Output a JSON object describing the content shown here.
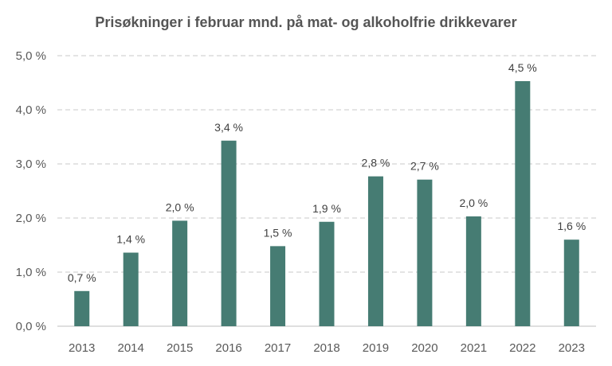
{
  "chart_data": {
    "type": "bar",
    "title": "Prisøkninger i februar mnd. på mat- og alkoholfrie drikkevarer",
    "categories": [
      "2013",
      "2014",
      "2015",
      "2016",
      "2017",
      "2018",
      "2019",
      "2020",
      "2021",
      "2022",
      "2023"
    ],
    "values": [
      0.65,
      1.36,
      1.95,
      3.43,
      1.48,
      1.93,
      2.77,
      2.71,
      2.03,
      4.53,
      1.6
    ],
    "data_labels": [
      "0,7 %",
      "1,4 %",
      "2,0 %",
      "3,4 %",
      "1,5 %",
      "1,9 %",
      "2,8 %",
      "2,7 %",
      "2,0 %",
      "4,5 %",
      "1,6 %"
    ],
    "y_ticks": [
      0,
      1,
      2,
      3,
      4,
      5
    ],
    "y_tick_labels": [
      "0,0 %",
      "1,0 %",
      "2,0 %",
      "3,0 %",
      "4,0 %",
      "5,0 %"
    ],
    "ylim": [
      0,
      5
    ],
    "grid": true,
    "xlabel": "",
    "ylabel": "",
    "bar_color": "#467c73",
    "grid_color": "#c8c8c8"
  }
}
